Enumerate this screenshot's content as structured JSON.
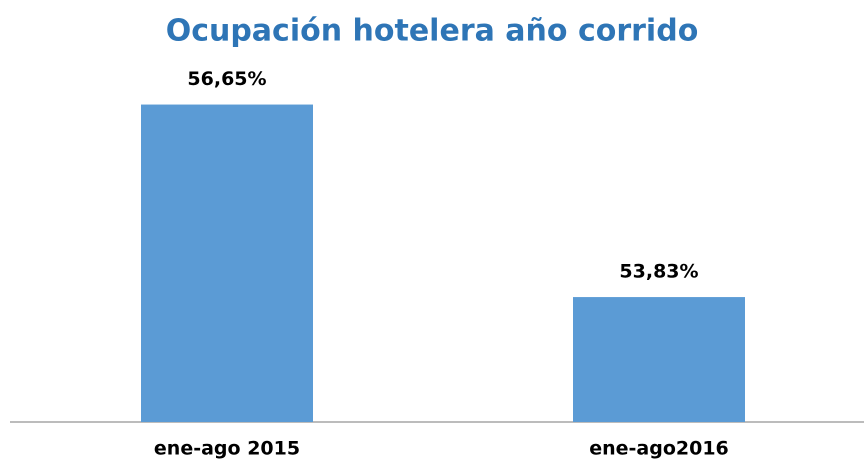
{
  "chart_data": {
    "type": "bar",
    "title": "Ocupación hotelera año corrido",
    "categories": [
      "ene-ago 2015",
      "ene-ago2016"
    ],
    "values": [
      56.65,
      53.83
    ],
    "value_labels": [
      "56,65%",
      "53,83%"
    ],
    "color": "#5b9bd5",
    "ylim": [
      52,
      57.2
    ]
  }
}
